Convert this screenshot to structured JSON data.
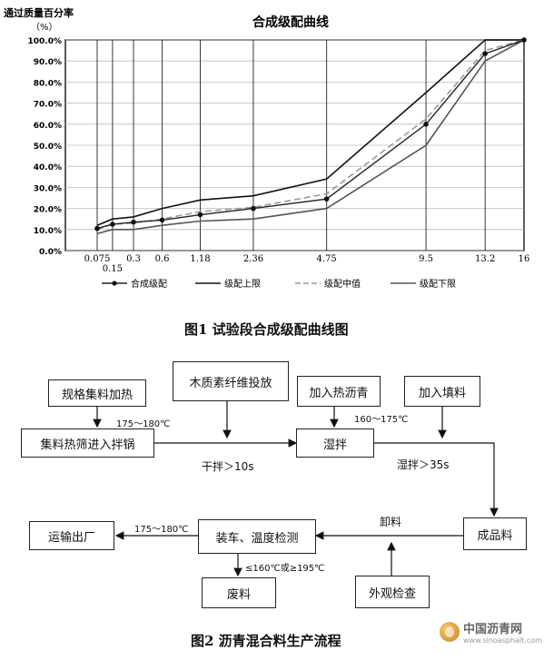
{
  "figure1": {
    "caption": "图1  试验段合成级配曲线图",
    "chart_data": {
      "type": "line",
      "title": "合成级配曲线",
      "ylabel": "通过质量百分率",
      "ylabel_unit": "（%）",
      "xlabel": "",
      "y_ticks": [
        "0.0%",
        "10.0%",
        "20.0%",
        "30.0%",
        "40.0%",
        "50.0%",
        "60.0%",
        "70.0%",
        "80.0%",
        "90.0%",
        "100.0%"
      ],
      "ylim": [
        0,
        100
      ],
      "x": [
        0.075,
        0.15,
        0.3,
        0.6,
        1.18,
        2.36,
        4.75,
        9.5,
        13.2,
        16
      ],
      "x_tick_labels": [
        "0.075",
        "0.15",
        "0.3",
        "0.6",
        "1.18",
        "2.36",
        "4.75",
        "9.5",
        "13.2",
        "16"
      ],
      "legend_position": "bottom",
      "grid": true,
      "series": [
        {
          "name": "合成级配",
          "style": "solid-marker",
          "color": "#222222",
          "values": [
            10.5,
            12.5,
            13.5,
            14.5,
            17,
            20,
            24.5,
            60,
            93.5,
            100
          ]
        },
        {
          "name": "级配上限",
          "style": "solid",
          "color": "#111111",
          "values": [
            12,
            15,
            16,
            20,
            24,
            26,
            34,
            75,
            100,
            100
          ]
        },
        {
          "name": "级配中值",
          "style": "dashed",
          "color": "#999999",
          "values": [
            10,
            12.5,
            13,
            15,
            18.5,
            20.5,
            27,
            62.5,
            95,
            100
          ]
        },
        {
          "name": "级配下限",
          "style": "solid",
          "color": "#555555",
          "values": [
            8,
            10,
            10,
            12,
            14,
            15,
            20,
            50,
            90,
            100
          ]
        }
      ]
    }
  },
  "figure2": {
    "caption": "图2  沥青混合料生产流程",
    "boxes": {
      "spec_heat": "规格集料加热",
      "wood_fiber": "木质素纤维投放",
      "add_asphalt": "加入热沥青",
      "add_filler": "加入填料",
      "screen_mixer": "集料热筛进入拌锅",
      "wet_mix": "湿拌",
      "finished": "成品料",
      "transport": "运输出厂",
      "load_temp": "装车、温度检测",
      "waste": "废料",
      "appearance": "外观检查"
    },
    "labels": {
      "temp1": "175～180℃",
      "temp2": "160～175℃",
      "dry_mix": "干拌＞10s",
      "wet_mix_time": "湿拌＞35s",
      "unload": "卸料",
      "temp3": "175～180℃",
      "reject": "≤160℃或≥195℃"
    }
  },
  "watermark": {
    "name": "中国沥青网",
    "url": "www.sinoasphalt.com"
  }
}
